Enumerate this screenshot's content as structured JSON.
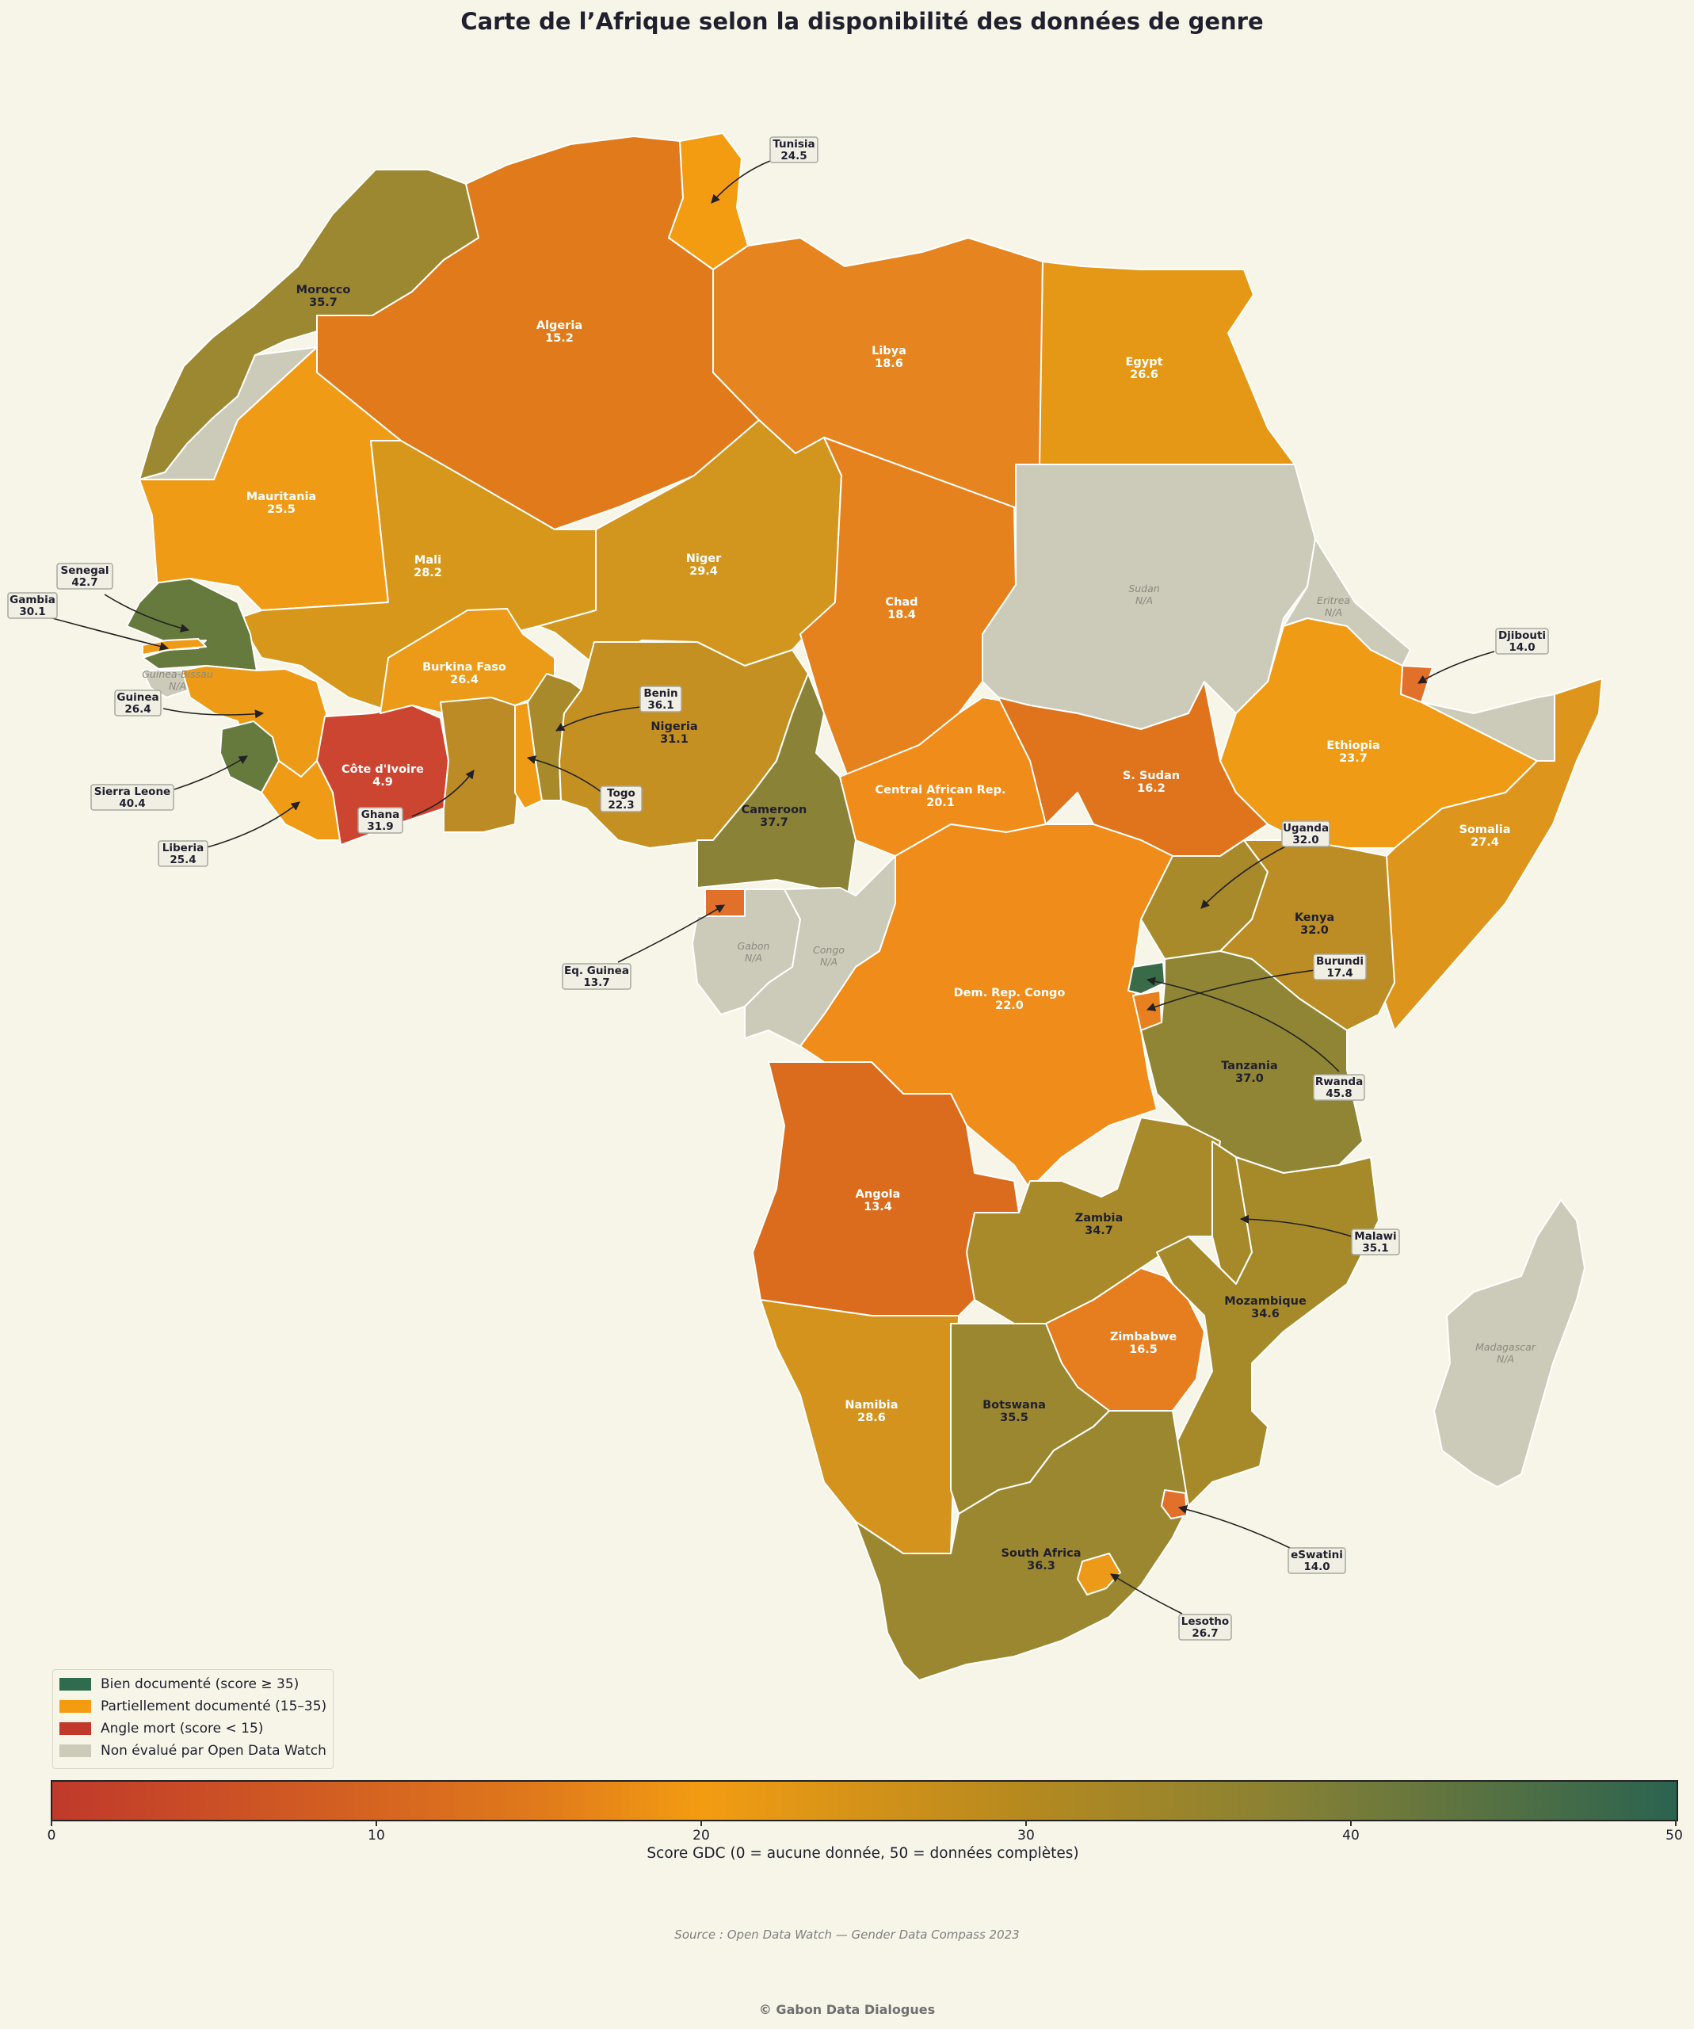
{
  "title": "Carte de l’Afrique selon la disponibilité des données de genre",
  "legend": [
    {
      "label": "Bien documenté (score ≥ 35)",
      "color": "#2e6b4f"
    },
    {
      "label": "Partiellement documenté (15–35)",
      "color": "#f39c12"
    },
    {
      "label": "Angle mort (score < 15)",
      "color": "#c0392b"
    },
    {
      "label": "Non évalué par Open Data Watch",
      "color": "#cccbb9"
    }
  ],
  "colorbar": {
    "label": "Score GDC (0 = aucune donnée, 50 = données complètes)",
    "ticks": [
      "0",
      "10",
      "20",
      "30",
      "40",
      "50"
    ],
    "min": 0,
    "max": 50
  },
  "source": "Source : Open Data Watch — Gender Data Compass 2023",
  "footer": "© Gabon Data Dialogues",
  "countries": {
    "morocco": {
      "name": "Morocco",
      "score": "35.7"
    },
    "algeria": {
      "name": "Algeria",
      "score": "15.2"
    },
    "tunisia": {
      "name": "Tunisia",
      "score": "24.5"
    },
    "libya": {
      "name": "Libya",
      "score": "18.6"
    },
    "egypt": {
      "name": "Egypt",
      "score": "26.6"
    },
    "mauritania": {
      "name": "Mauritania",
      "score": "25.5"
    },
    "mali": {
      "name": "Mali",
      "score": "28.2"
    },
    "niger": {
      "name": "Niger",
      "score": "29.4"
    },
    "chad": {
      "name": "Chad",
      "score": "18.4"
    },
    "sudan": {
      "name": "Sudan",
      "score": "N/A"
    },
    "eritrea": {
      "name": "Eritrea",
      "score": "N/A"
    },
    "djibouti": {
      "name": "Djibouti",
      "score": "14.0"
    },
    "ethiopia": {
      "name": "Ethiopia",
      "score": "23.7"
    },
    "somalia": {
      "name": "Somalia",
      "score": "27.4"
    },
    "senegal": {
      "name": "Senegal",
      "score": "42.7"
    },
    "gambia": {
      "name": "Gambia",
      "score": "30.1"
    },
    "guinea_bissau": {
      "name": "Guinea-Bissau",
      "score": "N/A"
    },
    "guinea": {
      "name": "Guinea",
      "score": "26.4"
    },
    "sierra_leone": {
      "name": "Sierra Leone",
      "score": "40.4"
    },
    "liberia": {
      "name": "Liberia",
      "score": "25.4"
    },
    "cote_divoire": {
      "name": "Côte d'Ivoire",
      "score": "4.9"
    },
    "burkina_faso": {
      "name": "Burkina Faso",
      "score": "26.4"
    },
    "ghana": {
      "name": "Ghana",
      "score": "31.9"
    },
    "togo": {
      "name": "Togo",
      "score": "22.3"
    },
    "benin": {
      "name": "Benin",
      "score": "36.1"
    },
    "nigeria": {
      "name": "Nigeria",
      "score": "31.1"
    },
    "cameroon": {
      "name": "Cameroon",
      "score": "37.7"
    },
    "car": {
      "name": "Central African Rep.",
      "score": "20.1"
    },
    "s_sudan": {
      "name": "S. Sudan",
      "score": "16.2"
    },
    "eq_guinea": {
      "name": "Eq. Guinea",
      "score": "13.7"
    },
    "gabon": {
      "name": "Gabon",
      "score": "N/A"
    },
    "congo": {
      "name": "Congo",
      "score": "N/A"
    },
    "drc": {
      "name": "Dem. Rep. Congo",
      "score": "22.0"
    },
    "uganda": {
      "name": "Uganda",
      "score": "32.0"
    },
    "kenya": {
      "name": "Kenya",
      "score": "32.0"
    },
    "rwanda": {
      "name": "Rwanda",
      "score": "45.8"
    },
    "burundi": {
      "name": "Burundi",
      "score": "17.4"
    },
    "tanzania": {
      "name": "Tanzania",
      "score": "37.0"
    },
    "angola": {
      "name": "Angola",
      "score": "13.4"
    },
    "zambia": {
      "name": "Zambia",
      "score": "34.7"
    },
    "malawi": {
      "name": "Malawi",
      "score": "35.1"
    },
    "mozambique": {
      "name": "Mozambique",
      "score": "34.6"
    },
    "zimbabwe": {
      "name": "Zimbabwe",
      "score": "16.5"
    },
    "namibia": {
      "name": "Namibia",
      "score": "28.6"
    },
    "botswana": {
      "name": "Botswana",
      "score": "35.5"
    },
    "south_africa": {
      "name": "South Africa",
      "score": "36.3"
    },
    "eswatini": {
      "name": "eSwatini",
      "score": "14.0"
    },
    "lesotho": {
      "name": "Lesotho",
      "score": "26.7"
    },
    "madagascar": {
      "name": "Madagascar",
      "score": "N/A"
    }
  }
}
